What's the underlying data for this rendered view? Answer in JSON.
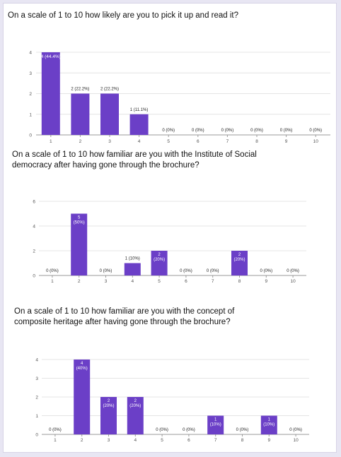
{
  "chart_data": [
    {
      "type": "bar",
      "title": "On a scale of 1 to 10 how likely are you to pick it up and read it?",
      "categories": [
        "1",
        "2",
        "3",
        "4",
        "5",
        "6",
        "7",
        "8",
        "9",
        "10"
      ],
      "values": [
        4,
        2,
        2,
        1,
        0,
        0,
        0,
        0,
        0,
        0
      ],
      "data_labels": [
        "4 (44.4%)",
        "2 (22.2%)",
        "2 (22.2%)",
        "1 (11.1%)",
        "0 (0%)",
        "0 (0%)",
        "0 (0%)",
        "0 (0%)",
        "0 (0%)",
        "0 (0%)"
      ],
      "label_position": "above",
      "yticks": [
        0,
        1,
        2,
        3,
        4
      ],
      "ylim": [
        0,
        4
      ],
      "grid": true,
      "bar_color": "#6b3fc7"
    },
    {
      "type": "bar",
      "title": "On a scale of 1 to 10 how familiar are you with the Institute of Social democracy after having gone through the brochure?",
      "categories": [
        "1",
        "2",
        "3",
        "4",
        "5",
        "6",
        "7",
        "8",
        "9",
        "10"
      ],
      "values": [
        0,
        5,
        0,
        1,
        2,
        0,
        0,
        2,
        0,
        0
      ],
      "data_labels": [
        "0 (0%)",
        "5 (50%)",
        "0 (0%)",
        "1 (10%)",
        "2 (20%)",
        "0 (0%)",
        "0 (0%)",
        "2 (20%)",
        "0 (0%)",
        "0 (0%)"
      ],
      "label_position": "inside",
      "yticks": [
        0,
        2,
        4,
        6
      ],
      "ylim": [
        0,
        6
      ],
      "grid": true,
      "bar_color": "#6b3fc7"
    },
    {
      "type": "bar",
      "title": "On a scale of 1 to 10 how familiar are you with the concept of composite heritage after having gone through the brochure?",
      "categories": [
        "1",
        "2",
        "3",
        "4",
        "5",
        "6",
        "7",
        "8",
        "9",
        "10"
      ],
      "values": [
        0,
        4,
        2,
        2,
        0,
        0,
        1,
        0,
        1,
        0
      ],
      "data_labels": [
        "0 (0%)",
        "4 (40%)",
        "2 (20%)",
        "2 (20%)",
        "0 (0%)",
        "0 (0%)",
        "1 (10%)",
        "0 (0%)",
        "1 (10%)",
        "0 (0%)"
      ],
      "label_position": "inside",
      "yticks": [
        0,
        1,
        2,
        3,
        4
      ],
      "ylim": [
        0,
        4
      ],
      "grid": true,
      "bar_color": "#6b3fc7"
    }
  ]
}
